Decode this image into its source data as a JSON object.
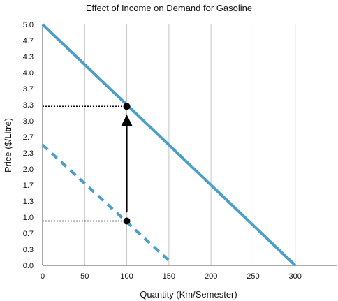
{
  "chart_data": {
    "type": "line",
    "title": "Effect of Income on Demand for Gasoline",
    "xlabel": "Quantity (Km/Semester)",
    "ylabel": "Price ($/Litre)",
    "xlim": [
      0,
      350
    ],
    "ylim": [
      0,
      5
    ],
    "x_ticks": [
      0,
      50,
      100,
      150,
      200,
      250,
      300
    ],
    "y_ticks": [
      "0.0",
      "0.3",
      "0.7",
      "1.0",
      "1.3",
      "1.7",
      "2.0",
      "2.3",
      "2.7",
      "3.0",
      "3.3",
      "3.7",
      "4.0",
      "4.3",
      "4.7",
      "5.0"
    ],
    "grid": {
      "vertical": true,
      "horizontal": false
    },
    "series": [
      {
        "style": "solid",
        "color": "#4a9ec9",
        "points": [
          [
            0,
            5.0
          ],
          [
            300,
            0.0
          ]
        ]
      },
      {
        "style": "dashed",
        "color": "#4a9ec9",
        "points": [
          [
            0,
            2.5
          ],
          [
            150,
            0.1
          ]
        ]
      }
    ],
    "markers": [
      {
        "x": 100,
        "y": 3.3
      },
      {
        "x": 100,
        "y": 0.92
      }
    ],
    "guide_lines": [
      {
        "y": 3.3,
        "from_x": 0,
        "to_x": 100
      },
      {
        "y": 0.92,
        "from_x": 0,
        "to_x": 100
      }
    ],
    "arrow": {
      "x": 100,
      "from_y": 1.1,
      "to_y": 3.1
    }
  }
}
